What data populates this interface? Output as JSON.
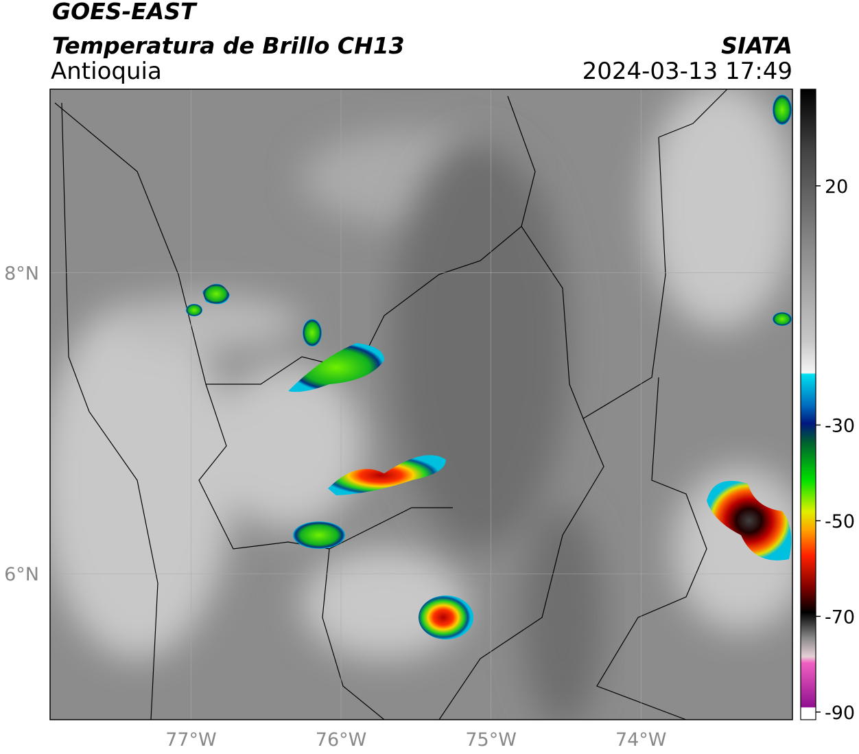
{
  "header": {
    "title": "GOES-EAST",
    "subtitle": "Temperatura de Brillo CH13",
    "region": "Antioquia",
    "source": "SIATA",
    "timestamp": "2024-03-13 17:49"
  },
  "map": {
    "xlim": [
      -77.94,
      -72.99
    ],
    "ylim": [
      5.03,
      9.22
    ],
    "xticks": [
      {
        "value": -77,
        "label": "77°W"
      },
      {
        "value": -76,
        "label": "76°W"
      },
      {
        "value": -75,
        "label": "75°W"
      },
      {
        "value": -74,
        "label": "74°W"
      }
    ],
    "yticks": [
      {
        "value": 8,
        "label": "8°N"
      },
      {
        "value": 6,
        "label": "6°N"
      }
    ]
  },
  "colorbar": {
    "range": [
      -91.6,
      40.2
    ],
    "ticks": [
      20,
      -30,
      -50,
      -70,
      -90
    ]
  }
}
